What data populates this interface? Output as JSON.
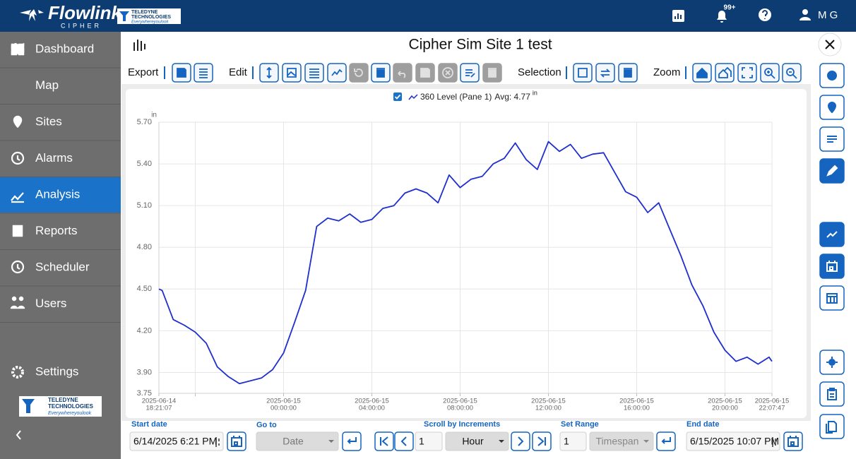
{
  "header": {
    "brand": "Flowlink",
    "brand_sub": "CIPHER",
    "logo_line1": "TELEDYNE",
    "logo_line2": "TECHNOLOGIES",
    "tagline": "Everywhereyoulook",
    "notification_badge": "99+",
    "user": "M G"
  },
  "sidebar": {
    "items": [
      "Dashboard",
      "Map",
      "Sites",
      "Alarms",
      "Analysis",
      "Reports",
      "Scheduler",
      "Users"
    ],
    "active": 4,
    "settings": "Settings"
  },
  "page_title": "Cipher Sim Site 1 test",
  "toolbar": {
    "groups": [
      "Export",
      "Edit",
      "Selection",
      "Zoom"
    ]
  },
  "chart_data": {
    "type": "line",
    "y_label": "in",
    "legend_checked": true,
    "legend_avg": "Avg: 4.77",
    "legend_unit": "in",
    "grid": true,
    "x": [
      "2025-06-14 18:21:07",
      "2025-06-14 18:30:00",
      "2025-06-14 19:00:00",
      "2025-06-14 19:30:00",
      "2025-06-14 20:00:00",
      "2025-06-14 20:30:00",
      "2025-06-14 21:00:00",
      "2025-06-14 21:30:00",
      "2025-06-14 22:00:00",
      "2025-06-14 22:30:00",
      "2025-06-14 23:00:00",
      "2025-06-14 23:30:00",
      "2025-06-15 00:00:00",
      "2025-06-15 00:30:00",
      "2025-06-15 01:00:00",
      "2025-06-15 01:30:00",
      "2025-06-15 02:00:00",
      "2025-06-15 02:30:00",
      "2025-06-15 03:00:00",
      "2025-06-15 03:30:00",
      "2025-06-15 04:00:00",
      "2025-06-15 04:30:00",
      "2025-06-15 05:00:00",
      "2025-06-15 05:30:00",
      "2025-06-15 06:00:00",
      "2025-06-15 06:30:00",
      "2025-06-15 07:00:00",
      "2025-06-15 07:30:00",
      "2025-06-15 08:00:00",
      "2025-06-15 08:30:00",
      "2025-06-15 09:00:00",
      "2025-06-15 09:30:00",
      "2025-06-15 10:00:00",
      "2025-06-15 10:30:00",
      "2025-06-15 11:00:00",
      "2025-06-15 11:30:00",
      "2025-06-15 12:00:00",
      "2025-06-15 12:30:00",
      "2025-06-15 13:00:00",
      "2025-06-15 13:30:00",
      "2025-06-15 14:00:00",
      "2025-06-15 14:30:00",
      "2025-06-15 15:00:00",
      "2025-06-15 15:30:00",
      "2025-06-15 16:00:00",
      "2025-06-15 16:30:00",
      "2025-06-15 17:00:00",
      "2025-06-15 17:30:00",
      "2025-06-15 18:00:00",
      "2025-06-15 18:30:00",
      "2025-06-15 19:00:00",
      "2025-06-15 19:30:00",
      "2025-06-15 20:00:00",
      "2025-06-15 20:30:00",
      "2025-06-15 21:00:00",
      "2025-06-15 21:30:00",
      "2025-06-15 22:00:00",
      "2025-06-15 22:07:47"
    ],
    "series": [
      {
        "name": "360 Level (Pane 1)",
        "color": "#1f2fcf",
        "values": [
          4.5,
          4.49,
          4.28,
          4.24,
          4.19,
          4.11,
          3.94,
          3.87,
          3.82,
          3.84,
          3.86,
          3.92,
          4.04,
          4.26,
          4.49,
          4.95,
          5.01,
          4.99,
          5.04,
          4.98,
          5.0,
          5.08,
          5.1,
          5.19,
          5.22,
          5.19,
          5.12,
          5.32,
          5.23,
          5.29,
          5.31,
          5.4,
          5.44,
          5.55,
          5.43,
          5.36,
          5.56,
          5.49,
          5.54,
          5.44,
          5.47,
          5.48,
          5.34,
          5.2,
          5.16,
          5.05,
          5.12,
          4.93,
          4.74,
          4.53,
          4.38,
          4.19,
          4.06,
          3.98,
          4.01,
          3.96,
          4.01,
          3.98
        ]
      }
    ],
    "xlim": [
      "2025-06-14 18:21:07",
      "2025-06-15 22:07:47"
    ],
    "xticks": [
      {
        "value": "2025-06-14 18:21:07",
        "label": [
          "2025-06-14",
          "18:21:07"
        ]
      },
      {
        "value": "2025-06-14 20:00:00",
        "label": null
      },
      {
        "value": "2025-06-15 00:00:00",
        "label": [
          "2025-06-15",
          "00:00:00"
        ]
      },
      {
        "value": "2025-06-15 04:00:00",
        "label": [
          "2025-06-15",
          "04:00:00"
        ]
      },
      {
        "value": "2025-06-15 08:00:00",
        "label": [
          "2025-06-15",
          "08:00:00"
        ]
      },
      {
        "value": "2025-06-15 12:00:00",
        "label": [
          "2025-06-15",
          "12:00:00"
        ]
      },
      {
        "value": "2025-06-15 16:00:00",
        "label": [
          "2025-06-15",
          "16:00:00"
        ]
      },
      {
        "value": "2025-06-15 20:00:00",
        "label": [
          "2025-06-15",
          "20:00:00"
        ]
      },
      {
        "value": "2025-06-15 22:07:47",
        "label": [
          "2025-06-15",
          "22:07:47"
        ]
      }
    ],
    "ylim": [
      3.75,
      5.7
    ],
    "yticks": [
      3.75,
      {
        "value": 3.9,
        "label": "3.90"
      },
      {
        "value": 4.2,
        "label": "4.20"
      },
      {
        "value": 4.5,
        "label": "4.50"
      },
      {
        "value": 4.8,
        "label": "4.80"
      },
      {
        "value": 5.1,
        "label": "5.10"
      },
      {
        "value": 5.4,
        "label": "5.40"
      },
      {
        "value": 5.7,
        "label": "5.70"
      }
    ]
  },
  "controls": {
    "start_date_label": "Start date",
    "start_date": "6/14/2025 6:21 PM",
    "goto_label": "Go to",
    "goto_mode": "Date",
    "scroll_label": "Scroll by Increments",
    "scroll_count": "1",
    "scroll_unit": "Hour",
    "range_label": "Set Range",
    "range_count": "1",
    "range_unit": "Timespan",
    "end_date_label": "End date",
    "end_date": "6/15/2025 10:07 PM"
  }
}
